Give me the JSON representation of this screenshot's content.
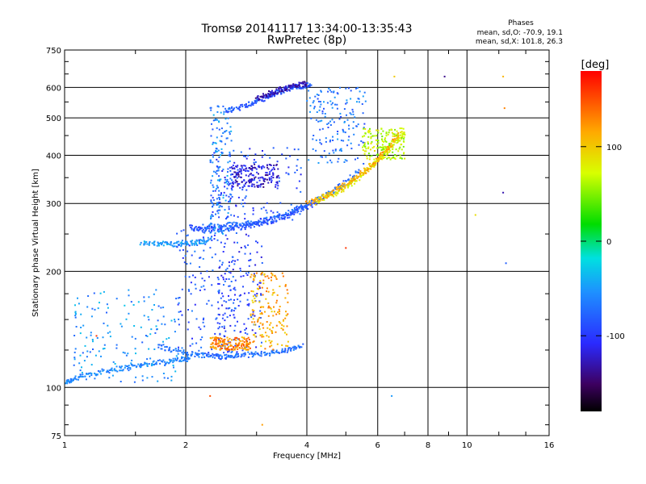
{
  "chart_data": {
    "type": "scatter",
    "title": "Tromsø 20141117 13:34:00-13:35:43",
    "subtitle": "RwPretec (8p)",
    "xlabel": "Frequency [MHz]",
    "ylabel": "Stationary phase Virtual Height [km]",
    "x_scale": "log",
    "y_scale": "log",
    "xlim": [
      1,
      16
    ],
    "ylim": [
      75,
      750
    ],
    "x_ticks": [
      1,
      2,
      4,
      6,
      8,
      10,
      16
    ],
    "x_tick_labels": [
      "1",
      "2",
      "4",
      "6",
      "8",
      "10",
      "16"
    ],
    "y_ticks": [
      75,
      100,
      200,
      300,
      400,
      500,
      600,
      750
    ],
    "y_tick_labels": [
      "75",
      "100",
      "200",
      "300",
      "400",
      "500",
      "600",
      "750"
    ],
    "grid": true,
    "phase_stats": {
      "title": "Phases",
      "line_o": "mean, sd,O: -70.9, 19.1",
      "line_x": "mean, sd,X: 101.8, 26.3"
    },
    "colorbar": {
      "label": "[deg]",
      "range": [
        -180,
        180
      ],
      "ticks": [
        100,
        0,
        -100
      ],
      "tick_labels": [
        "100",
        "0",
        "-100"
      ]
    },
    "traces": [
      {
        "x": [
          1.0,
          1.05,
          1.15,
          1.3,
          1.45,
          1.6,
          1.8,
          1.95,
          2.05
        ],
        "y": [
          103,
          105,
          108,
          111,
          113,
          115,
          117,
          118,
          119
        ],
        "phase": -60
      },
      {
        "x": [
          1.7,
          1.9,
          2.1,
          2.3,
          2.5,
          2.7,
          3.0,
          3.3,
          3.6,
          3.9
        ],
        "y": [
          128,
          124,
          122,
          121,
          120,
          121,
          122,
          123,
          125,
          128
        ],
        "phase": -70
      },
      {
        "x": [
          2.05,
          2.2,
          2.4,
          2.6,
          2.8,
          3.0,
          3.3,
          3.6,
          3.9,
          4.2
        ],
        "y": [
          260,
          258,
          258,
          259,
          261,
          265,
          270,
          280,
          292,
          300
        ],
        "phase": -90
      },
      {
        "x": [
          2.2,
          2.5,
          2.8,
          3.1,
          3.4,
          3.8,
          4.2,
          4.6,
          5.0,
          5.4
        ],
        "y": [
          262,
          263,
          266,
          270,
          278,
          290,
          305,
          320,
          340,
          365
        ],
        "phase": -75
      },
      {
        "x": [
          4.2,
          4.6,
          5.0,
          5.4,
          5.8,
          6.2,
          6.6,
          7.0
        ],
        "y": [
          302,
          315,
          330,
          350,
          375,
          400,
          430,
          460
        ],
        "phase": 80
      },
      {
        "x": [
          4.0,
          4.4,
          4.8,
          5.2,
          5.6,
          6.0,
          6.4,
          6.8
        ],
        "y": [
          300,
          312,
          328,
          345,
          365,
          390,
          420,
          455
        ],
        "phase": 115
      },
      {
        "x": [
          2.5,
          2.7,
          2.9,
          3.1,
          3.3,
          3.5,
          3.7,
          3.9,
          4.1
        ],
        "y": [
          520,
          530,
          545,
          560,
          575,
          590,
          600,
          605,
          610
        ],
        "phase": -85
      },
      {
        "x": [
          3.0,
          3.2,
          3.4,
          3.6,
          3.8,
          4.0
        ],
        "y": [
          560,
          575,
          590,
          600,
          610,
          615
        ],
        "phase": -130
      },
      {
        "x": [
          1.55,
          1.7,
          1.85,
          2.0,
          2.15,
          2.3
        ],
        "y": [
          238,
          236,
          235,
          236,
          238,
          242
        ],
        "phase": -50
      }
    ],
    "clusters": [
      {
        "x_range": [
          1.9,
          2.7
        ],
        "y_range": [
          120,
          260
        ],
        "phase": -85
      },
      {
        "x_range": [
          2.4,
          3.1
        ],
        "y_range": [
          120,
          250
        ],
        "phase": -95
      },
      {
        "x_range": [
          2.9,
          3.6
        ],
        "y_range": [
          125,
          200
        ],
        "phase": 115
      },
      {
        "x_range": [
          2.3,
          2.9
        ],
        "y_range": [
          125,
          135
        ],
        "phase": 130
      },
      {
        "x_range": [
          2.3,
          3.9
        ],
        "y_range": [
          270,
          420
        ],
        "phase": -90
      },
      {
        "x_range": [
          2.6,
          3.4
        ],
        "y_range": [
          330,
          380
        ],
        "phase": -120
      },
      {
        "x_range": [
          4.0,
          5.6
        ],
        "y_range": [
          380,
          600
        ],
        "phase": -70
      },
      {
        "x_range": [
          5.5,
          7.0
        ],
        "y_range": [
          390,
          470
        ],
        "phase": 65
      },
      {
        "x_range": [
          2.3,
          2.6
        ],
        "y_range": [
          250,
          540
        ],
        "phase": -60
      },
      {
        "x_range": [
          1.05,
          1.9
        ],
        "y_range": [
          103,
          180
        ],
        "phase": -55
      }
    ],
    "scattered_points": [
      {
        "x": 6.5,
        "y": 95,
        "phase": -50
      },
      {
        "x": 6.6,
        "y": 640,
        "phase": 100
      },
      {
        "x": 8.8,
        "y": 640,
        "phase": -140
      },
      {
        "x": 12.3,
        "y": 640,
        "phase": 110
      },
      {
        "x": 12.4,
        "y": 530,
        "phase": 130
      },
      {
        "x": 12.3,
        "y": 320,
        "phase": -130
      },
      {
        "x": 10.5,
        "y": 280,
        "phase": 90
      },
      {
        "x": 12.5,
        "y": 210,
        "phase": -80
      },
      {
        "x": 5.0,
        "y": 230,
        "phase": 160
      },
      {
        "x": 3.1,
        "y": 80,
        "phase": 120
      },
      {
        "x": 2.3,
        "y": 95,
        "phase": 150
      },
      {
        "x": 1.2,
        "y": 136,
        "phase": 160
      }
    ]
  },
  "colors": {
    "grid": "#000000",
    "background": "#ffffff"
  }
}
